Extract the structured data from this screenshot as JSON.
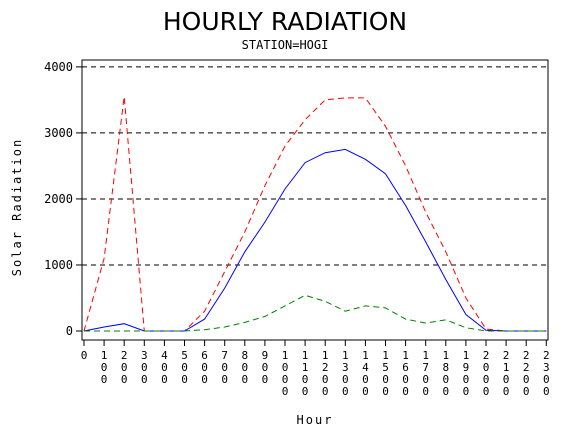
{
  "chart_data": {
    "type": "line",
    "title": "HOURLY RADIATION",
    "subtitle": "STATION=HOGI",
    "xlabel": "Hour",
    "ylabel": "Solar Radiation",
    "x": [
      0,
      100,
      200,
      300,
      400,
      500,
      600,
      700,
      800,
      900,
      1000,
      1100,
      1200,
      1300,
      1400,
      1500,
      1600,
      1700,
      1800,
      1900,
      2000,
      2100,
      2200,
      2300
    ],
    "x_tick_labels": [
      "0",
      "100",
      "200",
      "300",
      "400",
      "500",
      "600",
      "700",
      "800",
      "900",
      "1000",
      "1100",
      "1200",
      "1300",
      "1400",
      "1500",
      "1600",
      "1700",
      "1800",
      "1900",
      "2000",
      "2100",
      "2200",
      "2300"
    ],
    "y_ticks": [
      0,
      1000,
      2000,
      3000,
      4000
    ],
    "y_tick_labels": [
      "0",
      "1000",
      "2000",
      "3000",
      "4000"
    ],
    "ylim": [
      0,
      4000
    ],
    "grid": "horizontal-dashed",
    "series": [
      {
        "color": "#ff0000",
        "dash": "dashed",
        "values": [
          0,
          1100,
          3550,
          0,
          0,
          0,
          300,
          900,
          1500,
          2200,
          2800,
          3200,
          3500,
          3530,
          3530,
          3100,
          2500,
          1800,
          1200,
          500,
          30,
          0,
          0,
          0
        ]
      },
      {
        "color": "#0000ff",
        "dash": "solid",
        "values": [
          0,
          60,
          110,
          0,
          0,
          0,
          180,
          650,
          1200,
          1650,
          2150,
          2550,
          2700,
          2750,
          2600,
          2380,
          1900,
          1350,
          780,
          250,
          10,
          0,
          0,
          0
        ]
      },
      {
        "color": "#008000",
        "dash": "dashed",
        "values": [
          0,
          0,
          0,
          0,
          0,
          0,
          20,
          60,
          130,
          220,
          380,
          540,
          450,
          300,
          380,
          350,
          180,
          120,
          170,
          50,
          0,
          0,
          0,
          0
        ]
      }
    ]
  }
}
